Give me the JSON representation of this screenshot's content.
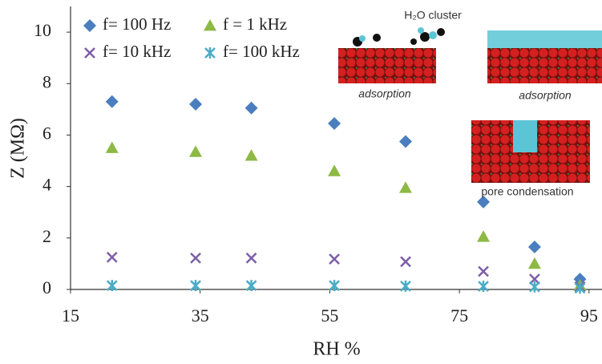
{
  "chart_data": {
    "type": "scatter",
    "x_label": "RH %",
    "y_label": "Z (MΩ)",
    "x": [
      21.4,
      34.3,
      42.9,
      55.7,
      66.7,
      78.7,
      86.6,
      93.6
    ],
    "series": [
      {
        "name": "f= 100 Hz",
        "color": "#4a7ebf",
        "marker": "diamond",
        "values": [
          7.3,
          7.2,
          7.05,
          6.45,
          5.75,
          3.4,
          1.65,
          0.4
        ]
      },
      {
        "name": "f = 1 kHz",
        "color": "#8db944",
        "marker": "triangle",
        "values": [
          5.5,
          5.35,
          5.2,
          4.6,
          3.95,
          2.05,
          1.0,
          0.15
        ]
      },
      {
        "name": "f= 10 kHz",
        "color": "#7d5ea8",
        "marker": "x",
        "values": [
          1.25,
          1.22,
          1.22,
          1.18,
          1.08,
          0.7,
          0.4,
          0.1
        ]
      },
      {
        "name": "f= 100 kHz",
        "color": "#4bacc6",
        "marker": "asterisk",
        "values": [
          0.15,
          0.15,
          0.15,
          0.15,
          0.13,
          0.12,
          0.1,
          0.05
        ]
      }
    ],
    "xlim": [
      15,
      97
    ],
    "xticks": [
      15,
      35,
      55,
      75,
      95
    ],
    "ylim": [
      0,
      11
    ],
    "yticks": [
      0,
      2,
      4,
      6,
      8,
      10
    ],
    "annotations": [
      "H₂O cluster",
      "adsorption",
      "adsorption",
      "pore condensation"
    ]
  }
}
